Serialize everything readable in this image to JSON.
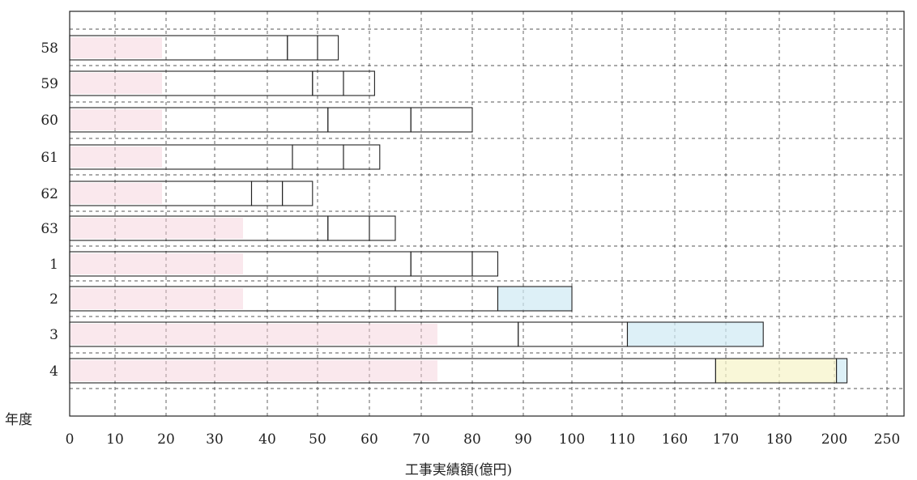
{
  "chart_data": {
    "type": "bar",
    "orientation": "horizontal",
    "stacked": true,
    "ylabel": "年度",
    "xlabel": "工事実績額(億円)",
    "x_tick_labels": [
      "0",
      "10",
      "20",
      "30",
      "40",
      "50",
      "60",
      "70",
      "80",
      "90",
      "100",
      "110",
      "160",
      "170",
      "180",
      "200",
      "250"
    ],
    "grid": true,
    "categories": [
      "58",
      "59",
      "60",
      "61",
      "62",
      "63",
      "1",
      "2",
      "3",
      "4"
    ],
    "bar_segment_ends": [
      [
        44,
        50,
        54
      ],
      [
        49,
        55,
        61
      ],
      [
        52,
        68,
        80
      ],
      [
        45,
        55,
        62
      ],
      [
        37,
        43,
        49
      ],
      [
        52,
        60,
        65
      ],
      [
        68,
        80,
        85
      ],
      [
        65,
        85,
        100
      ],
      [
        89,
        115,
        177
      ],
      [
        168,
        202,
        212
      ]
    ],
    "segment_colors": [
      "#ffffff",
      "#ffffff",
      "#ffffff"
    ],
    "highlight_colors": {
      "pink": "#f3cdd8",
      "blue": "#cfeaf4",
      "yellow": "#f7f3c8"
    }
  }
}
